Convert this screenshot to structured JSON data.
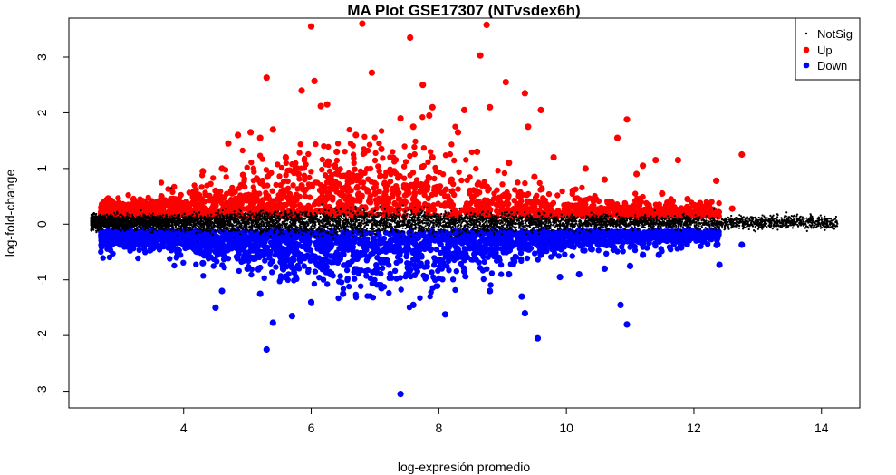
{
  "chart_data": {
    "type": "scatter",
    "title": "MA Plot GSE17307 (NTvsdex6h)",
    "xlabel": "log-expresión promedio",
    "ylabel": "log-fold-change",
    "xlim": [
      2.2,
      14.6
    ],
    "ylim": [
      -3.3,
      3.7
    ],
    "xticks": [
      "4",
      "6",
      "8",
      "10",
      "12",
      "14"
    ],
    "yticks": [
      "-3",
      "-2",
      "-1",
      "0",
      "1",
      "2",
      "3"
    ],
    "grid": false,
    "legend_position": "top-right",
    "colors": {
      "NotSig": "#000000",
      "Up": "#ff0000",
      "Down": "#0000ff"
    },
    "series": [
      {
        "name": "NotSig",
        "note_points": "dense band around y=0 from x≈2.6 to x≈14.2",
        "points": [
          [
            2.6,
            0.0
          ],
          [
            2.9,
            0.08
          ],
          [
            3.1,
            -0.08
          ],
          [
            3.4,
            0.12
          ],
          [
            3.6,
            0.05
          ],
          [
            4.0,
            0.1
          ],
          [
            4.5,
            0.2
          ],
          [
            5.0,
            0.18
          ],
          [
            5.5,
            0.15
          ],
          [
            6.0,
            0.1
          ],
          [
            6.5,
            0.05
          ],
          [
            7.0,
            0.0
          ],
          [
            7.5,
            -0.05
          ],
          [
            8.0,
            0.12
          ],
          [
            8.5,
            0.08
          ],
          [
            9.0,
            0.05
          ],
          [
            9.5,
            0.0
          ],
          [
            10.0,
            0.02
          ],
          [
            10.5,
            0.0
          ],
          [
            11.0,
            0.05
          ],
          [
            11.5,
            0.0
          ],
          [
            12.0,
            0.05
          ],
          [
            12.5,
            0.0
          ],
          [
            13.0,
            0.02
          ],
          [
            13.3,
            0.08
          ],
          [
            13.6,
            0.0
          ],
          [
            14.0,
            0.02
          ],
          [
            14.2,
            0.0
          ],
          [
            3.8,
            0.65
          ],
          [
            3.9,
            -0.2
          ],
          [
            4.2,
            -0.15
          ],
          [
            5.2,
            -0.18
          ],
          [
            6.3,
            -0.1
          ],
          [
            7.8,
            -0.08
          ],
          [
            9.2,
            -0.12
          ],
          [
            10.8,
            -0.1
          ],
          [
            11.8,
            -0.12
          ]
        ]
      },
      {
        "name": "Up",
        "points": [
          [
            6.0,
            3.55
          ],
          [
            6.8,
            3.6
          ],
          [
            8.75,
            3.58
          ],
          [
            7.55,
            3.35
          ],
          [
            8.65,
            3.03
          ],
          [
            5.3,
            2.63
          ],
          [
            6.05,
            2.57
          ],
          [
            6.95,
            2.72
          ],
          [
            7.75,
            2.5
          ],
          [
            9.05,
            2.55
          ],
          [
            9.35,
            2.35
          ],
          [
            6.15,
            2.12
          ],
          [
            6.25,
            2.15
          ],
          [
            7.9,
            2.1
          ],
          [
            8.4,
            2.05
          ],
          [
            9.6,
            2.05
          ],
          [
            5.85,
            2.4
          ],
          [
            7.85,
            1.95
          ],
          [
            8.8,
            2.1
          ],
          [
            7.4,
            1.9
          ],
          [
            7.6,
            1.75
          ],
          [
            8.3,
            1.65
          ],
          [
            6.7,
            1.6
          ],
          [
            9.4,
            1.75
          ],
          [
            10.95,
            1.88
          ],
          [
            4.7,
            1.45
          ],
          [
            4.85,
            1.6
          ],
          [
            5.05,
            1.65
          ],
          [
            5.2,
            1.55
          ],
          [
            5.4,
            1.7
          ],
          [
            10.8,
            1.55
          ],
          [
            11.1,
            0.9
          ],
          [
            11.2,
            1.05
          ],
          [
            11.4,
            1.15
          ],
          [
            11.75,
            1.15
          ],
          [
            12.75,
            1.25
          ],
          [
            12.35,
            0.78
          ],
          [
            12.6,
            0.28
          ],
          [
            4.3,
            0.95
          ],
          [
            4.6,
            1.0
          ],
          [
            3.8,
            0.45
          ],
          [
            3.65,
            0.5
          ],
          [
            3.0,
            0.28
          ],
          [
            4.1,
            0.35
          ],
          [
            4.9,
            0.7
          ],
          [
            5.6,
            1.2
          ],
          [
            6.4,
            1.3
          ],
          [
            7.1,
            1.35
          ],
          [
            7.9,
            1.2
          ],
          [
            8.6,
            1.3
          ],
          [
            9.1,
            1.1
          ],
          [
            9.8,
            1.2
          ],
          [
            10.3,
            1.0
          ],
          [
            10.6,
            0.8
          ],
          [
            11.5,
            0.55
          ],
          [
            11.9,
            0.45
          ],
          [
            5.8,
            0.9
          ],
          [
            6.6,
            0.85
          ],
          [
            7.3,
            0.95
          ],
          [
            8.2,
            0.8
          ],
          [
            9.5,
            0.85
          ],
          [
            10.1,
            0.6
          ],
          [
            6.2,
            0.6
          ],
          [
            7.0,
            0.55
          ],
          [
            8.0,
            0.6
          ],
          [
            9.0,
            0.5
          ],
          [
            10.7,
            0.4
          ],
          [
            5.3,
            0.5
          ],
          [
            4.5,
            0.6
          ],
          [
            7.6,
            0.45
          ],
          [
            8.8,
            0.4
          ]
        ]
      },
      {
        "name": "Down",
        "points": [
          [
            7.4,
            -3.05
          ],
          [
            5.3,
            -2.25
          ],
          [
            9.55,
            -2.05
          ],
          [
            5.4,
            -1.77
          ],
          [
            10.95,
            -1.8
          ],
          [
            8.1,
            -1.62
          ],
          [
            9.35,
            -1.6
          ],
          [
            5.7,
            -1.65
          ],
          [
            10.85,
            -1.45
          ],
          [
            4.5,
            -1.5
          ],
          [
            6.0,
            -1.4
          ],
          [
            7.6,
            -1.45
          ],
          [
            9.3,
            -1.3
          ],
          [
            8.8,
            -1.2
          ],
          [
            7.1,
            -1.15
          ],
          [
            6.5,
            -1.25
          ],
          [
            5.2,
            -1.25
          ],
          [
            4.6,
            -1.2
          ],
          [
            12.4,
            -0.73
          ],
          [
            12.75,
            -0.37
          ],
          [
            11.8,
            -0.42
          ],
          [
            11.45,
            -0.55
          ],
          [
            11.2,
            -0.55
          ],
          [
            11.0,
            -0.75
          ],
          [
            10.6,
            -0.8
          ],
          [
            10.2,
            -0.9
          ],
          [
            9.9,
            -0.95
          ],
          [
            4.3,
            -0.7
          ],
          [
            3.9,
            -0.5
          ],
          [
            3.5,
            -0.4
          ],
          [
            3.0,
            -0.3
          ],
          [
            5.0,
            -0.8
          ],
          [
            5.6,
            -0.95
          ],
          [
            6.3,
            -0.9
          ],
          [
            7.0,
            -0.85
          ],
          [
            7.8,
            -0.95
          ],
          [
            8.4,
            -0.85
          ],
          [
            9.1,
            -0.9
          ],
          [
            4.7,
            -0.45
          ],
          [
            5.5,
            -0.5
          ],
          [
            6.8,
            -0.55
          ],
          [
            8.2,
            -0.6
          ],
          [
            9.6,
            -0.55
          ],
          [
            10.4,
            -0.45
          ],
          [
            6.1,
            -0.35
          ],
          [
            7.5,
            -0.4
          ],
          [
            8.9,
            -0.35
          ]
        ]
      }
    ]
  }
}
